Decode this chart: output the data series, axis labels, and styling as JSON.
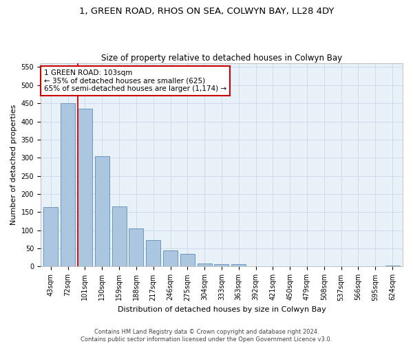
{
  "title_line1": "1, GREEN ROAD, RHOS ON SEA, COLWYN BAY, LL28 4DY",
  "title_line2": "Size of property relative to detached houses in Colwyn Bay",
  "xlabel": "Distribution of detached houses by size in Colwyn Bay",
  "ylabel": "Number of detached properties",
  "categories": [
    "43sqm",
    "72sqm",
    "101sqm",
    "130sqm",
    "159sqm",
    "188sqm",
    "217sqm",
    "246sqm",
    "275sqm",
    "304sqm",
    "333sqm",
    "363sqm",
    "392sqm",
    "421sqm",
    "450sqm",
    "479sqm",
    "508sqm",
    "537sqm",
    "566sqm",
    "595sqm",
    "624sqm"
  ],
  "values": [
    163,
    450,
    435,
    305,
    165,
    105,
    73,
    44,
    35,
    9,
    7,
    7,
    1,
    0,
    0,
    0,
    0,
    0,
    0,
    0,
    3
  ],
  "bar_color": "#adc6e0",
  "bar_edge_color": "#5b8db8",
  "vline_color": "#cc0000",
  "vline_index": 2,
  "annotation_text": "1 GREEN ROAD: 103sqm\n← 35% of detached houses are smaller (625)\n65% of semi-detached houses are larger (1,174) →",
  "annotation_box_color": "#ffffff",
  "annotation_box_edge": "#cc0000",
  "ylim": [
    0,
    560
  ],
  "yticks": [
    0,
    50,
    100,
    150,
    200,
    250,
    300,
    350,
    400,
    450,
    500,
    550
  ],
  "grid_color": "#c8d8e8",
  "background_color": "#e8f0f8",
  "footer_text": "Contains HM Land Registry data © Crown copyright and database right 2024.\nContains public sector information licensed under the Open Government Licence v3.0.",
  "title_fontsize": 9.5,
  "subtitle_fontsize": 8.5,
  "axis_label_fontsize": 8,
  "tick_fontsize": 7,
  "annotation_fontsize": 7.5,
  "footer_fontsize": 6
}
